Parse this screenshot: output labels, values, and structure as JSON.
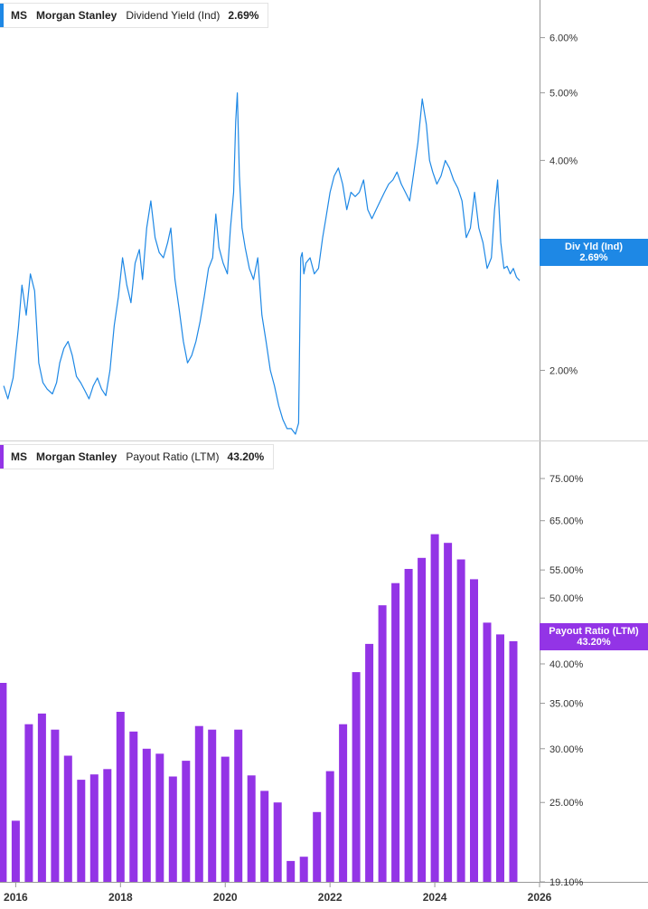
{
  "header1": {
    "ticker": "MS",
    "name": "Morgan Stanley",
    "metric": "Dividend Yield (Ind)",
    "value": "2.69%"
  },
  "header2": {
    "ticker": "MS",
    "name": "Morgan Stanley",
    "metric": "Payout Ratio (LTM)",
    "value": "43.20%"
  },
  "tag1": {
    "line1": "Div Yld (Ind)",
    "line2": "2.69%"
  },
  "tag2": {
    "line1": "Payout Ratio (LTM)",
    "line2": "43.20%"
  },
  "colors": {
    "yield": "#1e88e5",
    "payout": "#9334e6",
    "axis": "#999999",
    "text": "#333333"
  },
  "chart_data": [
    {
      "type": "line",
      "title": "Dividend Yield (Ind)",
      "scale": "log",
      "ylim": [
        1.62,
        6.4
      ],
      "yticks": [
        2.0,
        3.0,
        4.0,
        5.0,
        6.0
      ],
      "ytick_labels": [
        "2.00%",
        "3.00%",
        "4.00%",
        "5.00%",
        "6.00%"
      ],
      "x": [
        2015.77,
        2015.85,
        2015.95,
        2016.05,
        2016.12,
        2016.2,
        2016.28,
        2016.36,
        2016.44,
        2016.52,
        2016.6,
        2016.7,
        2016.78,
        2016.84,
        2016.92,
        2017.0,
        2017.08,
        2017.16,
        2017.24,
        2017.32,
        2017.4,
        2017.48,
        2017.56,
        2017.64,
        2017.72,
        2017.8,
        2017.88,
        2017.96,
        2018.04,
        2018.12,
        2018.2,
        2018.28,
        2018.36,
        2018.42,
        2018.5,
        2018.58,
        2018.66,
        2018.74,
        2018.82,
        2018.9,
        2018.96,
        2019.04,
        2019.12,
        2019.2,
        2019.28,
        2019.36,
        2019.44,
        2019.52,
        2019.6,
        2019.68,
        2019.76,
        2019.82,
        2019.88,
        2019.96,
        2020.04,
        2020.1,
        2020.16,
        2020.2,
        2020.23,
        2020.27,
        2020.32,
        2020.38,
        2020.46,
        2020.54,
        2020.62,
        2020.7,
        2020.78,
        2020.86,
        2020.94,
        2021.02,
        2021.1,
        2021.18,
        2021.26,
        2021.34,
        2021.4,
        2021.44,
        2021.47,
        2021.5,
        2021.54,
        2021.62,
        2021.7,
        2021.78,
        2021.86,
        2021.92,
        2022.0,
        2022.08,
        2022.16,
        2022.24,
        2022.32,
        2022.4,
        2022.48,
        2022.56,
        2022.64,
        2022.72,
        2022.8,
        2022.88,
        2022.96,
        2023.04,
        2023.12,
        2023.2,
        2023.28,
        2023.36,
        2023.44,
        2023.52,
        2023.6,
        2023.68,
        2023.76,
        2023.84,
        2023.9,
        2023.96,
        2024.04,
        2024.12,
        2024.2,
        2024.28,
        2024.36,
        2024.44,
        2024.52,
        2024.6,
        2024.68,
        2024.76,
        2024.84,
        2024.92,
        2025.0,
        2025.08,
        2025.14,
        2025.2,
        2025.26,
        2025.32,
        2025.38,
        2025.44,
        2025.5,
        2025.56,
        2025.62
      ],
      "y": [
        1.9,
        1.82,
        1.95,
        2.3,
        2.65,
        2.4,
        2.75,
        2.6,
        2.05,
        1.92,
        1.88,
        1.85,
        1.92,
        2.05,
        2.15,
        2.2,
        2.1,
        1.96,
        1.92,
        1.87,
        1.82,
        1.9,
        1.95,
        1.88,
        1.84,
        2.0,
        2.32,
        2.55,
        2.9,
        2.65,
        2.5,
        2.85,
        2.98,
        2.7,
        3.2,
        3.5,
        3.1,
        2.95,
        2.9,
        3.05,
        3.2,
        2.7,
        2.45,
        2.2,
        2.05,
        2.1,
        2.2,
        2.35,
        2.55,
        2.8,
        2.9,
        3.35,
        3.0,
        2.85,
        2.75,
        3.2,
        3.6,
        4.55,
        5.0,
        3.8,
        3.2,
        3.0,
        2.8,
        2.7,
        2.9,
        2.4,
        2.2,
        2.0,
        1.9,
        1.78,
        1.7,
        1.65,
        1.65,
        1.62,
        1.68,
        2.9,
        2.95,
        2.75,
        2.85,
        2.9,
        2.75,
        2.8,
        3.1,
        3.3,
        3.6,
        3.8,
        3.9,
        3.7,
        3.4,
        3.6,
        3.55,
        3.6,
        3.75,
        3.4,
        3.3,
        3.4,
        3.5,
        3.6,
        3.7,
        3.75,
        3.85,
        3.7,
        3.6,
        3.5,
        3.85,
        4.25,
        4.9,
        4.5,
        4.0,
        3.85,
        3.7,
        3.8,
        4.0,
        3.9,
        3.75,
        3.65,
        3.5,
        3.1,
        3.2,
        3.6,
        3.2,
        3.05,
        2.8,
        2.9,
        3.4,
        3.75,
        3.05,
        2.8,
        2.82,
        2.75,
        2.8,
        2.72,
        2.69
      ]
    },
    {
      "type": "bar",
      "title": "Payout Ratio (LTM)",
      "scale": "log",
      "ylim": [
        19.1,
        83
      ],
      "yticks": [
        19.1,
        25,
        30,
        35,
        40,
        45,
        50,
        55,
        65,
        75
      ],
      "ytick_labels": [
        "19.10%",
        "25.00%",
        "30.00%",
        "35.00%",
        "40.00%",
        "45.00%",
        "50.00%",
        "55.00%",
        "65.00%",
        "75.00%"
      ],
      "x": [
        2015.75,
        2016.0,
        2016.25,
        2016.5,
        2016.75,
        2017.0,
        2017.25,
        2017.5,
        2017.75,
        2018.0,
        2018.25,
        2018.5,
        2018.75,
        2019.0,
        2019.25,
        2019.5,
        2019.75,
        2020.0,
        2020.25,
        2020.5,
        2020.75,
        2021.0,
        2021.25,
        2021.5,
        2021.75,
        2022.0,
        2022.25,
        2022.5,
        2022.75,
        2023.0,
        2023.25,
        2023.5,
        2023.75,
        2024.0,
        2024.25,
        2024.5,
        2024.75,
        2025.0,
        2025.25,
        2025.5
      ],
      "values": [
        37.5,
        23.5,
        32.6,
        33.8,
        32.0,
        29.3,
        27.0,
        27.5,
        28.0,
        34.0,
        31.8,
        30.0,
        29.5,
        27.3,
        28.8,
        32.4,
        32.0,
        29.2,
        32.0,
        27.4,
        26.0,
        25.0,
        20.5,
        20.8,
        24.2,
        27.8,
        32.6,
        38.9,
        42.8,
        48.8,
        52.6,
        55.2,
        57.3,
        62.1,
        60.3,
        57.0,
        53.3,
        46.0,
        44.2,
        43.2
      ]
    }
  ],
  "x_axis": {
    "ticks": [
      2016,
      2018,
      2020,
      2022,
      2024,
      2026
    ],
    "labels": [
      "2016",
      "2018",
      "2020",
      "2022",
      "2024",
      "2026"
    ]
  }
}
